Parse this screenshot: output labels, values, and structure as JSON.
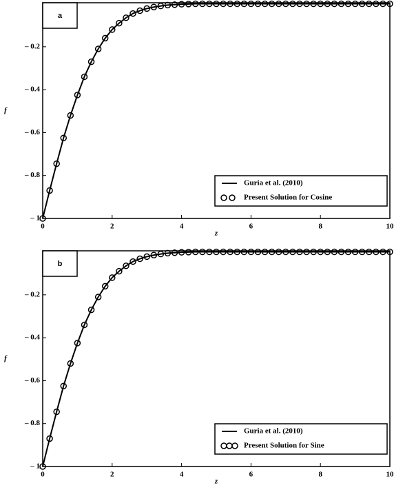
{
  "chart_data": [
    {
      "type": "line",
      "panel_label": "a",
      "xlabel": "z",
      "ylabel": "f",
      "x": [
        0,
        0.2,
        0.4,
        0.6,
        0.8,
        1,
        1.2,
        1.4,
        1.6,
        1.8,
        2,
        2.2,
        2.4,
        2.6,
        2.8,
        3,
        3.2,
        3.4,
        3.6,
        3.8,
        4,
        4.2,
        4.4,
        4.6,
        4.8,
        5,
        5.2,
        5.4,
        5.6,
        5.8,
        6,
        6.2,
        6.4,
        6.6,
        6.8,
        7,
        7.2,
        7.4,
        7.6,
        7.8,
        8,
        8.2,
        8.4,
        8.6,
        8.8,
        9,
        9.2,
        9.4,
        9.6,
        9.8,
        10
      ],
      "series": [
        {
          "name": "Guria et al. (2010)",
          "color": "#000000",
          "mode": "lines",
          "values": [
            -1,
            -0.87,
            -0.745,
            -0.625,
            -0.52,
            -0.425,
            -0.34,
            -0.27,
            -0.21,
            -0.16,
            -0.12,
            -0.09,
            -0.065,
            -0.045,
            -0.032,
            -0.022,
            -0.015,
            -0.01,
            -0.006,
            -0.004,
            -0.002,
            -0.001,
            0,
            0,
            0,
            0,
            0,
            0,
            0,
            0,
            0,
            0,
            0,
            0,
            0,
            0,
            0,
            0,
            0,
            0,
            0,
            0,
            0,
            0,
            0,
            0,
            0,
            0,
            0,
            0,
            0
          ]
        },
        {
          "name": "Present Solution for Cosine",
          "color": "#000000",
          "mode": "markers",
          "values": [
            -1,
            -0.87,
            -0.745,
            -0.625,
            -0.52,
            -0.425,
            -0.34,
            -0.27,
            -0.21,
            -0.16,
            -0.12,
            -0.09,
            -0.065,
            -0.045,
            -0.032,
            -0.022,
            -0.015,
            -0.01,
            -0.006,
            -0.004,
            -0.002,
            -0.001,
            0,
            0,
            0,
            0,
            0,
            0,
            0,
            0,
            0,
            0,
            0,
            0,
            0,
            0,
            0,
            0,
            0,
            0,
            0,
            0,
            0,
            0,
            0,
            0,
            0,
            0,
            0,
            0,
            0
          ]
        }
      ],
      "xlim": [
        0,
        10
      ],
      "ylim": [
        -1,
        0.005
      ],
      "xticks": [
        0,
        2,
        4,
        6,
        8,
        10
      ],
      "yticks": [
        {
          "value": -1,
          "label": "– 1"
        },
        {
          "value": -0.8,
          "label": "– 0.8"
        },
        {
          "value": -0.6,
          "label": "– 0.6"
        },
        {
          "value": -0.4,
          "label": "– 0.4"
        },
        {
          "value": -0.2,
          "label": "– 0.2"
        }
      ],
      "legend": "lower right"
    },
    {
      "type": "line",
      "panel_label": "b",
      "xlabel": "z",
      "ylabel": "f",
      "x": [
        0,
        0.2,
        0.4,
        0.6,
        0.8,
        1,
        1.2,
        1.4,
        1.6,
        1.8,
        2,
        2.2,
        2.4,
        2.6,
        2.8,
        3,
        3.2,
        3.4,
        3.6,
        3.8,
        4,
        4.2,
        4.4,
        4.6,
        4.8,
        5,
        5.2,
        5.4,
        5.6,
        5.8,
        6,
        6.2,
        6.4,
        6.6,
        6.8,
        7,
        7.2,
        7.4,
        7.6,
        7.8,
        8,
        8.2,
        8.4,
        8.6,
        8.8,
        9,
        9.2,
        9.4,
        9.6,
        9.8,
        10
      ],
      "series": [
        {
          "name": "Guria et al. (2010)",
          "color": "#000000",
          "mode": "lines",
          "values": [
            -1,
            -0.87,
            -0.745,
            -0.625,
            -0.52,
            -0.425,
            -0.34,
            -0.27,
            -0.21,
            -0.16,
            -0.12,
            -0.09,
            -0.065,
            -0.045,
            -0.032,
            -0.022,
            -0.015,
            -0.01,
            -0.006,
            -0.004,
            -0.002,
            -0.001,
            0,
            0,
            0,
            0,
            0,
            0,
            0,
            0,
            0,
            0,
            0,
            0,
            0,
            0,
            0,
            0,
            0,
            0,
            0,
            0,
            0,
            0,
            0,
            0,
            0,
            0,
            0,
            0,
            0
          ]
        },
        {
          "name": "Present Solution for Sine",
          "color": "#000000",
          "mode": "markers",
          "values": [
            -1,
            -0.87,
            -0.745,
            -0.625,
            -0.52,
            -0.425,
            -0.34,
            -0.27,
            -0.21,
            -0.16,
            -0.12,
            -0.09,
            -0.065,
            -0.045,
            -0.032,
            -0.022,
            -0.015,
            -0.01,
            -0.006,
            -0.004,
            -0.002,
            -0.001,
            0,
            0,
            0,
            0,
            0,
            0,
            0,
            0,
            0,
            0,
            0,
            0,
            0,
            0,
            0,
            0,
            0,
            0,
            0,
            0,
            0,
            0,
            0,
            0,
            0,
            0,
            0,
            0,
            0
          ]
        }
      ],
      "xlim": [
        0,
        10
      ],
      "ylim": [
        -1,
        0.005
      ],
      "xticks": [
        0,
        2,
        4,
        6,
        8,
        10
      ],
      "yticks": [
        {
          "value": -1,
          "label": "– 1"
        },
        {
          "value": -0.8,
          "label": "– 0.8"
        },
        {
          "value": -0.6,
          "label": "– 0.6"
        },
        {
          "value": -0.4,
          "label": "– 0.4"
        },
        {
          "value": -0.2,
          "label": "– 0.2"
        }
      ],
      "legend": "lower right"
    }
  ]
}
